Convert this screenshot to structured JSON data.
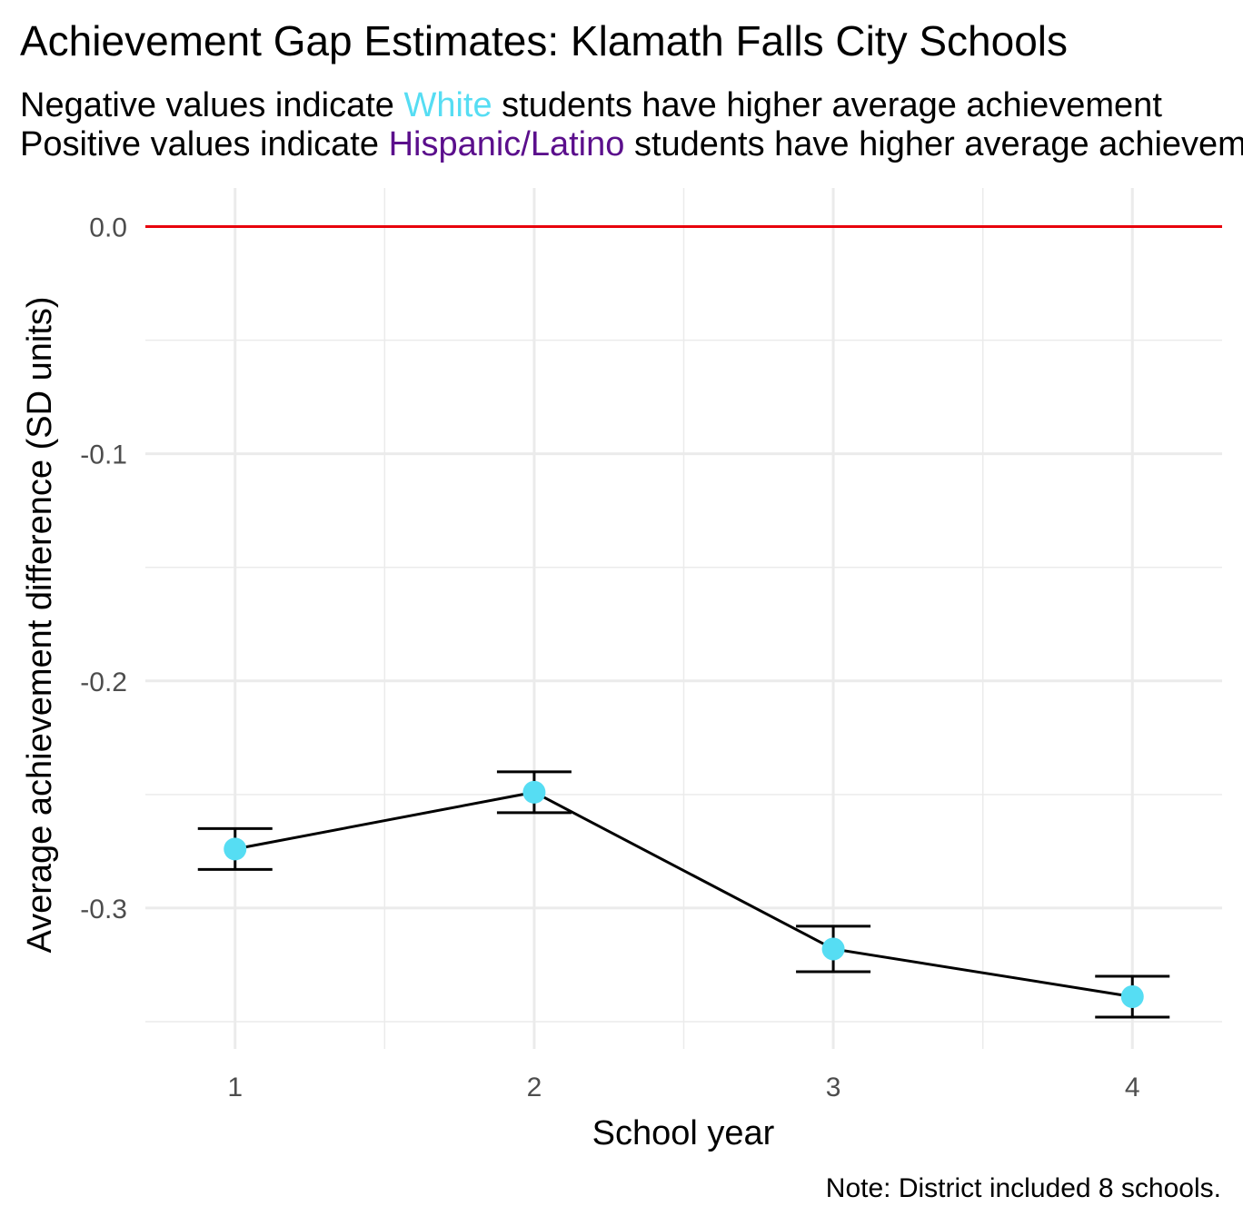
{
  "chart_data": {
    "type": "line",
    "title": "Achievement Gap Estimates: Klamath Falls City Schools",
    "subtitle_lines": [
      {
        "before": "Negative values indicate ",
        "group": "White",
        "group_color": "#56ddf3",
        "after": " students have higher average achievement"
      },
      {
        "before": "Positive values indicate ",
        "group": "Hispanic/Latino",
        "group_color": "#5b0f8c",
        "after": " students have higher average achievement"
      }
    ],
    "xlabel": "School year",
    "ylabel": "Average achievement difference (SD units)",
    "caption": "Note: District included 8 schools.",
    "x": [
      1,
      2,
      3,
      4
    ],
    "x_tick_labels": [
      "1",
      "2",
      "3",
      "4"
    ],
    "y_tick_values": [
      0.0,
      -0.1,
      -0.2,
      -0.3
    ],
    "y_tick_labels": [
      "0.0",
      "-0.1",
      "-0.2",
      "-0.3"
    ],
    "xlim": [
      0.7,
      4.3
    ],
    "ylim": [
      -0.362,
      0.017
    ],
    "grid": true,
    "reference_line": {
      "y": 0,
      "color": "#e8000b"
    },
    "series": [
      {
        "values": [
          -0.274,
          -0.249,
          -0.318,
          -0.339
        ],
        "ci_lower": [
          -0.283,
          -0.258,
          -0.328,
          -0.348
        ],
        "ci_upper": [
          -0.265,
          -0.24,
          -0.308,
          -0.33
        ],
        "point_color": "#56ddf3",
        "line_color": "#000000"
      }
    ]
  }
}
